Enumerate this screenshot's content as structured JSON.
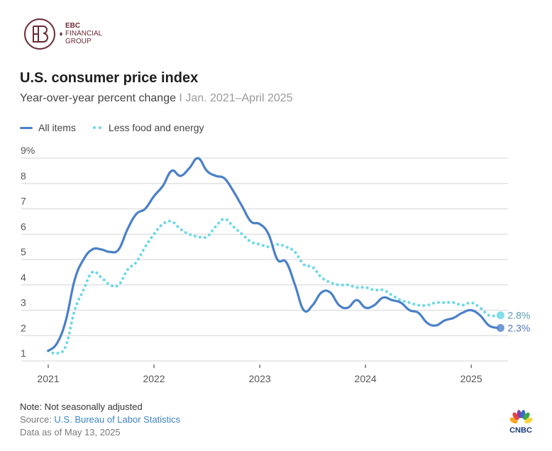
{
  "brand": {
    "logo_name": "EBC",
    "logo_line2": "FINANCIAL",
    "logo_line3": "GROUP",
    "publisher": "CNBC"
  },
  "header": {
    "title": "U.S. consumer price index",
    "subtitle_main": "Year-over-year percent change",
    "subtitle_sep": " I ",
    "subtitle_range": "Jan. 2021–April 2025"
  },
  "legend": {
    "all_items": "All items",
    "core": "Less food and energy"
  },
  "footer": {
    "note": "Note: Not seasonally adjusted",
    "source_label": "Source: ",
    "source_link": "U.S. Bureau of Labor Statistics",
    "data_date": "Data as of May 13, 2025"
  },
  "colors": {
    "all_items": "#4a80c8",
    "core": "#6dd8e8",
    "all_items_label": "#5577bb",
    "core_label": "#5a9aa8",
    "grid": "#dddddd",
    "tick_text": "#555555"
  },
  "chart_data": {
    "type": "line",
    "title": "U.S. consumer price index",
    "subtitle": "Year-over-year percent change | Jan. 2021–April 2025",
    "xlabel": "",
    "ylabel": "",
    "x_start": "2021-01",
    "x_end": "2025-04",
    "x_ticks": [
      "2021",
      "2022",
      "2023",
      "2024",
      "2025"
    ],
    "y_ticks": [
      "1",
      "2",
      "3",
      "4",
      "5",
      "6",
      "7",
      "8",
      "9%"
    ],
    "ylim": [
      1,
      9
    ],
    "grid": true,
    "legend_position": "top-left",
    "series": [
      {
        "name": "All items",
        "style": "solid",
        "end_label": "2.3%",
        "values": [
          1.4,
          1.7,
          2.6,
          4.2,
          5.0,
          5.4,
          5.4,
          5.3,
          5.4,
          6.2,
          6.8,
          7.0,
          7.5,
          7.9,
          8.5,
          8.3,
          8.6,
          9.0,
          8.5,
          8.3,
          8.2,
          7.7,
          7.1,
          6.5,
          6.4,
          6.0,
          5.0,
          4.9,
          4.0,
          3.0,
          3.2,
          3.7,
          3.7,
          3.2,
          3.1,
          3.4,
          3.1,
          3.2,
          3.5,
          3.4,
          3.3,
          3.0,
          2.9,
          2.5,
          2.4,
          2.6,
          2.7,
          2.9,
          3.0,
          2.8,
          2.4,
          2.3
        ]
      },
      {
        "name": "Less food and energy",
        "style": "dotted",
        "end_label": "2.8%",
        "values": [
          1.4,
          1.3,
          1.6,
          3.0,
          3.8,
          4.5,
          4.3,
          4.0,
          4.0,
          4.6,
          4.9,
          5.5,
          6.0,
          6.4,
          6.5,
          6.2,
          6.0,
          5.9,
          5.9,
          6.3,
          6.6,
          6.3,
          6.0,
          5.7,
          5.6,
          5.5,
          5.6,
          5.5,
          5.3,
          4.8,
          4.7,
          4.3,
          4.1,
          4.0,
          4.0,
          3.9,
          3.9,
          3.8,
          3.8,
          3.6,
          3.4,
          3.3,
          3.2,
          3.2,
          3.3,
          3.3,
          3.3,
          3.2,
          3.3,
          3.1,
          2.8,
          2.8
        ]
      }
    ]
  }
}
